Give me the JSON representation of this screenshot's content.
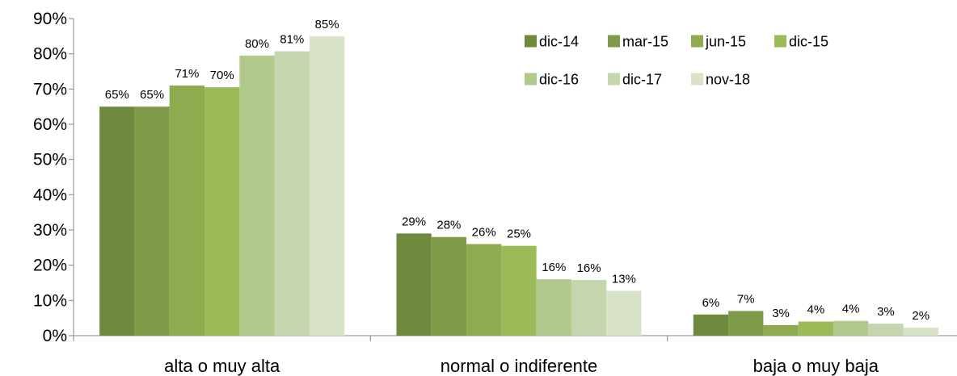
{
  "chart_data": {
    "type": "bar",
    "categories": [
      "alta o muy alta",
      "normal o indiferente",
      "baja o muy baja"
    ],
    "series": [
      {
        "name": "dic-14",
        "values": [
          65,
          29,
          6
        ],
        "labels": [
          "65%",
          "29%",
          "6%"
        ],
        "color": "#6e8a3e"
      },
      {
        "name": "mar-15",
        "values": [
          65,
          28,
          7
        ],
        "labels": [
          "65%",
          "28%",
          "7%"
        ],
        "color": "#7f9a48"
      },
      {
        "name": "jun-15",
        "values": [
          71,
          26,
          3
        ],
        "labels": [
          "71%",
          "26%",
          "3%"
        ],
        "color": "#8eab50"
      },
      {
        "name": "dic-15",
        "values": [
          70.5,
          25.5,
          4
        ],
        "labels": [
          "70%",
          "25%",
          "4%"
        ],
        "color": "#9bbb59"
      },
      {
        "name": "dic-16",
        "values": [
          79.5,
          16,
          4.2
        ],
        "labels": [
          "80%",
          "16%",
          "4%"
        ],
        "color": "#b2c98e"
      },
      {
        "name": "dic-17",
        "values": [
          80.7,
          15.8,
          3.4
        ],
        "labels": [
          "81%",
          "16%",
          "3%"
        ],
        "color": "#c5d5ad"
      },
      {
        "name": "nov-18",
        "values": [
          85,
          12.7,
          2.3
        ],
        "labels": [
          "85%",
          "13%",
          "2%"
        ],
        "color": "#d9e3c8"
      }
    ],
    "ylim": [
      0,
      90
    ],
    "yticks": [
      "0%",
      "10%",
      "20%",
      "30%",
      "40%",
      "50%",
      "60%",
      "70%",
      "80%",
      "90%"
    ],
    "grid": false,
    "legend_position": "top-right",
    "xlabel": "",
    "ylabel": "",
    "title": ""
  }
}
